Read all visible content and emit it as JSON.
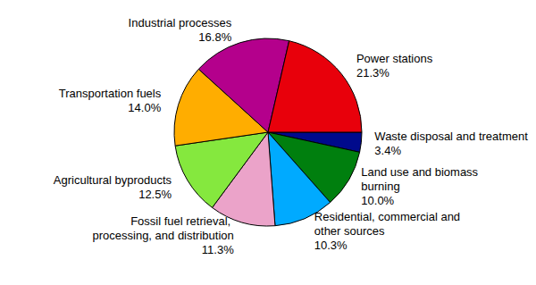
{
  "chart_data": {
    "type": "pie",
    "categories": [
      "Waste disposal and treatment",
      "Land use and biomass burning",
      "Residential, commercial and other sources",
      "Fossil fuel retrieval, processing, and distribution",
      "Agricultural byproducts",
      "Transportation fuels",
      "Industrial processes",
      "Power stations"
    ],
    "values": [
      3.4,
      10.0,
      10.3,
      11.3,
      12.5,
      14.0,
      16.8,
      21.3
    ],
    "value_labels": [
      "3.4%",
      "10.0%",
      "10.3%",
      "11.3%",
      "12.5%",
      "14.0%",
      "16.8%",
      "21.3%"
    ],
    "colors": [
      "#000a8c",
      "#007f0e",
      "#00aaff",
      "#eba3c9",
      "#85e83e",
      "#ffad00",
      "#b4008c",
      "#e8000b"
    ],
    "data_labels": true
  }
}
